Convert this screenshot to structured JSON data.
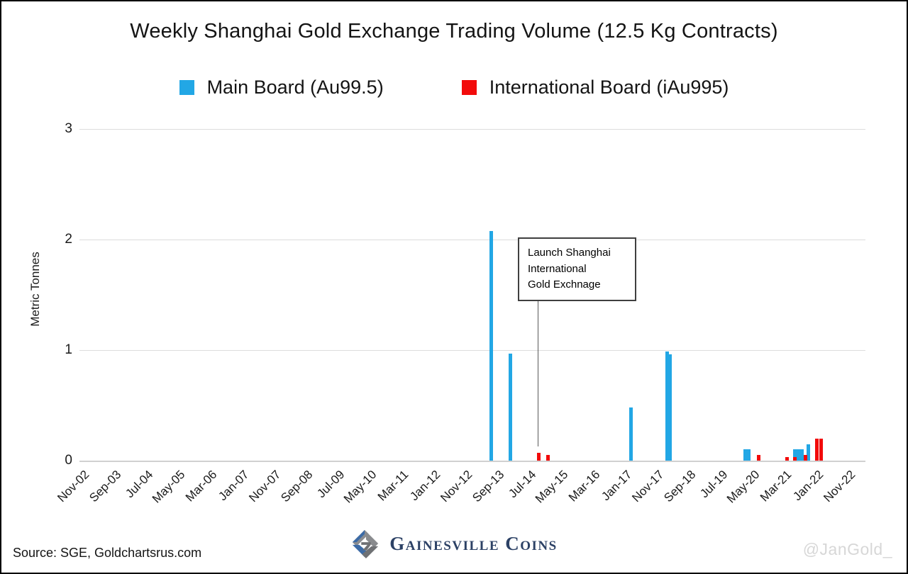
{
  "title": "Weekly Shanghai Gold Exchange Trading Volume (12.5 Kg Contracts)",
  "chart_data": {
    "type": "bar",
    "title": "Weekly Shanghai Gold Exchange Trading Volume (12.5 Kg Contracts)",
    "xlabel": "",
    "ylabel": "Metric Tonnes",
    "ylim": [
      0,
      3
    ],
    "yticks": [
      0,
      1,
      2,
      3
    ],
    "grid": "horizontal",
    "legend_position": "top",
    "x_axis": {
      "start_label": "Nov-02",
      "end_label": "Nov-22",
      "tick_interval_months": 10,
      "tick_labels": [
        "Nov-02",
        "Sep-03",
        "Jul-04",
        "May-05",
        "Mar-06",
        "Jan-07",
        "Nov-07",
        "Sep-08",
        "Jul-09",
        "May-10",
        "Mar-11",
        "Jan-12",
        "Nov-12",
        "Sep-13",
        "Jul-14",
        "May-15",
        "Mar-16",
        "Jan-17",
        "Nov-17",
        "Sep-18",
        "Jul-19",
        "May-20",
        "Mar-21",
        "Jan-22",
        "Nov-22"
      ]
    },
    "series": [
      {
        "name": "Main Board (Au99.5)",
        "color": "#22a7e5",
        "points": [
          {
            "date": "Aug-13",
            "months_from_start": 129.0,
            "tonnes": 2.08
          },
          {
            "date": "Feb-14",
            "months_from_start": 135.1,
            "tonnes": 0.97
          },
          {
            "date": "Mar-17",
            "months_from_start": 172.7,
            "tonnes": 0.48
          },
          {
            "date": "Feb-18",
            "months_from_start": 184.0,
            "tonnes": 0.99
          },
          {
            "date": "Mar-18",
            "months_from_start": 185.1,
            "tonnes": 0.96
          },
          {
            "date": "Mar-20",
            "months_from_start": 208.5,
            "tonnes": 0.1
          },
          {
            "date": "Apr-20",
            "months_from_start": 209.6,
            "tonnes": 0.1
          },
          {
            "date": "Jul-21",
            "months_from_start": 224.2,
            "tonnes": 0.1
          },
          {
            "date": "Aug-21",
            "months_from_start": 225.3,
            "tonnes": 0.1
          },
          {
            "date": "Sep-21",
            "months_from_start": 226.4,
            "tonnes": 0.1
          },
          {
            "date": "Nov-21",
            "months_from_start": 228.4,
            "tonnes": 0.15
          }
        ]
      },
      {
        "name": "International Board (iAu995)",
        "color": "#f20b0b",
        "points": [
          {
            "date": "Oct-14",
            "months_from_start": 143.8,
            "tonnes": 0.07
          },
          {
            "date": "Jan-15",
            "months_from_start": 146.7,
            "tonnes": 0.05
          },
          {
            "date": "Jul-20",
            "months_from_start": 212.7,
            "tonnes": 0.05
          },
          {
            "date": "Apr-21",
            "months_from_start": 221.6,
            "tonnes": 0.03
          },
          {
            "date": "Jul-21",
            "months_from_start": 224.2,
            "tonnes": 0.03
          },
          {
            "date": "Oct-21",
            "months_from_start": 227.4,
            "tonnes": 0.05
          },
          {
            "date": "Jan-22",
            "months_from_start": 231.0,
            "tonnes": 0.2
          },
          {
            "date": "Feb-22",
            "months_from_start": 232.4,
            "tonnes": 0.2
          }
        ]
      }
    ],
    "annotation": {
      "lines": [
        "Launch Shanghai",
        "International",
        "Gold Exchnage"
      ],
      "points_to_date": "Oct-14"
    }
  },
  "footer": {
    "source": "Source: SGE, Goldchartsrus.com",
    "logo_text": "Gainesville Coins",
    "handle": "@JanGold_"
  },
  "colors": {
    "main_board": "#22a7e5",
    "international_board": "#f20b0b",
    "gridline": "#dcdcdc",
    "handle_gray": "#d7d7d7",
    "logo_navy": "#2c4165"
  }
}
